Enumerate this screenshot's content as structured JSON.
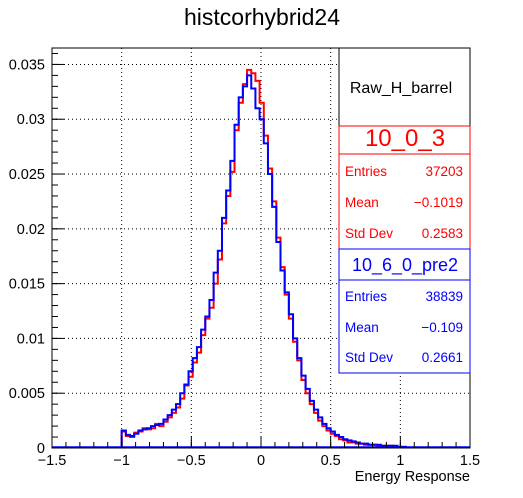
{
  "title": "histcorhybrid24",
  "chart_data": {
    "type": "histogram",
    "title": "histcorhybrid24",
    "xlabel": "Energy Response",
    "ylabel": "",
    "xlim": [
      -1.5,
      1.5
    ],
    "ylim": [
      0,
      0.0365
    ],
    "grid": true,
    "x_ticks": [
      "−1.5",
      "−1",
      "−0.5",
      "0",
      "0.5",
      "1",
      "1.5"
    ],
    "y_ticks": [
      "0",
      "0.005",
      "0.01",
      "0.015",
      "0.02",
      "0.025",
      "0.03",
      "0.035"
    ],
    "legend_title": "Raw_H_barrel",
    "colors": {
      "10_0_3": "#ff0000",
      "10_6_0_pre2": "#0000ff"
    },
    "series": [
      {
        "name": "10_0_3",
        "color": "#ff0000",
        "entries": "37203",
        "mean": "−0.1019",
        "std_dev": "0.2583",
        "bins": [
          [
            -1.0,
            0.0015
          ],
          [
            -0.97,
            0.0011
          ],
          [
            -0.94,
            0.001
          ],
          [
            -0.91,
            0.0014
          ],
          [
            -0.88,
            0.0015
          ],
          [
            -0.85,
            0.0018
          ],
          [
            -0.82,
            0.0017
          ],
          [
            -0.79,
            0.0018
          ],
          [
            -0.76,
            0.0022
          ],
          [
            -0.73,
            0.002
          ],
          [
            -0.7,
            0.0024
          ],
          [
            -0.67,
            0.0028
          ],
          [
            -0.64,
            0.0032
          ],
          [
            -0.61,
            0.0037
          ],
          [
            -0.58,
            0.0045
          ],
          [
            -0.55,
            0.0057
          ],
          [
            -0.52,
            0.0065
          ],
          [
            -0.49,
            0.0078
          ],
          [
            -0.46,
            0.0087
          ],
          [
            -0.43,
            0.0103
          ],
          [
            -0.4,
            0.0118
          ],
          [
            -0.37,
            0.0128
          ],
          [
            -0.34,
            0.015
          ],
          [
            -0.31,
            0.0172
          ],
          [
            -0.28,
            0.0205
          ],
          [
            -0.25,
            0.023
          ],
          [
            -0.22,
            0.0252
          ],
          [
            -0.19,
            0.029
          ],
          [
            -0.16,
            0.0315
          ],
          [
            -0.13,
            0.0332
          ],
          [
            -0.1,
            0.0345
          ],
          [
            -0.07,
            0.0342
          ],
          [
            -0.04,
            0.0335
          ],
          [
            -0.01,
            0.0315
          ],
          [
            0.02,
            0.0285
          ],
          [
            0.05,
            0.0255
          ],
          [
            0.08,
            0.0225
          ],
          [
            0.11,
            0.0192
          ],
          [
            0.14,
            0.0165
          ],
          [
            0.17,
            0.014
          ],
          [
            0.2,
            0.0118
          ],
          [
            0.23,
            0.0097
          ],
          [
            0.26,
            0.008
          ],
          [
            0.29,
            0.0062
          ],
          [
            0.32,
            0.005
          ],
          [
            0.35,
            0.004
          ],
          [
            0.38,
            0.0032
          ],
          [
            0.41,
            0.0025
          ],
          [
            0.44,
            0.002
          ],
          [
            0.47,
            0.0016
          ],
          [
            0.5,
            0.0013
          ],
          [
            0.53,
            0.0011
          ],
          [
            0.56,
            0.0008
          ],
          [
            0.59,
            0.0007
          ],
          [
            0.62,
            0.0005
          ],
          [
            0.65,
            0.0005
          ],
          [
            0.68,
            0.0004
          ],
          [
            0.71,
            0.0004
          ],
          [
            0.74,
            0.0003
          ],
          [
            0.77,
            0.0003
          ],
          [
            0.8,
            0.0003
          ],
          [
            0.83,
            0.0002
          ],
          [
            0.86,
            0.0002
          ],
          [
            0.89,
            0.0002
          ],
          [
            0.92,
            0.0002
          ],
          [
            0.95,
            0.0001
          ],
          [
            0.98,
            0.0001
          ],
          [
            1.01,
            0.0001
          ]
        ]
      },
      {
        "name": "10_6_0_pre2",
        "color": "#0000ff",
        "entries": "38839",
        "mean": "−0.109",
        "std_dev": "0.2661",
        "bins": [
          [
            -1.0,
            0.0016
          ],
          [
            -0.97,
            0.0012
          ],
          [
            -0.94,
            0.0011
          ],
          [
            -0.91,
            0.0013
          ],
          [
            -0.88,
            0.0016
          ],
          [
            -0.85,
            0.0017
          ],
          [
            -0.82,
            0.0018
          ],
          [
            -0.79,
            0.002
          ],
          [
            -0.76,
            0.0021
          ],
          [
            -0.73,
            0.0022
          ],
          [
            -0.7,
            0.0026
          ],
          [
            -0.67,
            0.003
          ],
          [
            -0.64,
            0.0035
          ],
          [
            -0.61,
            0.004
          ],
          [
            -0.58,
            0.005
          ],
          [
            -0.55,
            0.0058
          ],
          [
            -0.52,
            0.007
          ],
          [
            -0.49,
            0.0082
          ],
          [
            -0.46,
            0.0092
          ],
          [
            -0.43,
            0.0108
          ],
          [
            -0.4,
            0.012
          ],
          [
            -0.37,
            0.0135
          ],
          [
            -0.34,
            0.016
          ],
          [
            -0.31,
            0.018
          ],
          [
            -0.28,
            0.021
          ],
          [
            -0.25,
            0.0235
          ],
          [
            -0.22,
            0.0262
          ],
          [
            -0.19,
            0.0295
          ],
          [
            -0.16,
            0.032
          ],
          [
            -0.13,
            0.033
          ],
          [
            -0.1,
            0.034
          ],
          [
            -0.07,
            0.0328
          ],
          [
            -0.04,
            0.031
          ],
          [
            -0.01,
            0.03
          ],
          [
            0.02,
            0.0278
          ],
          [
            0.05,
            0.025
          ],
          [
            0.08,
            0.022
          ],
          [
            0.11,
            0.0188
          ],
          [
            0.14,
            0.0162
          ],
          [
            0.17,
            0.0142
          ],
          [
            0.2,
            0.0122
          ],
          [
            0.23,
            0.01
          ],
          [
            0.26,
            0.0082
          ],
          [
            0.29,
            0.0066
          ],
          [
            0.32,
            0.0054
          ],
          [
            0.35,
            0.0043
          ],
          [
            0.38,
            0.0035
          ],
          [
            0.41,
            0.0028
          ],
          [
            0.44,
            0.0022
          ],
          [
            0.47,
            0.0018
          ],
          [
            0.5,
            0.0015
          ],
          [
            0.53,
            0.0012
          ],
          [
            0.56,
            0.001
          ],
          [
            0.59,
            0.0008
          ],
          [
            0.62,
            0.0007
          ],
          [
            0.65,
            0.0006
          ],
          [
            0.68,
            0.0005
          ],
          [
            0.71,
            0.0004
          ],
          [
            0.74,
            0.0004
          ],
          [
            0.77,
            0.0003
          ],
          [
            0.8,
            0.0003
          ],
          [
            0.83,
            0.0003
          ],
          [
            0.86,
            0.0002
          ],
          [
            0.89,
            0.0002
          ],
          [
            0.92,
            0.0002
          ],
          [
            0.95,
            0.0002
          ],
          [
            0.98,
            0.0001
          ],
          [
            1.01,
            0.0001
          ]
        ]
      }
    ]
  },
  "stats_labels": {
    "entries": "Entries",
    "mean": "Mean",
    "std_dev": "Std Dev"
  }
}
